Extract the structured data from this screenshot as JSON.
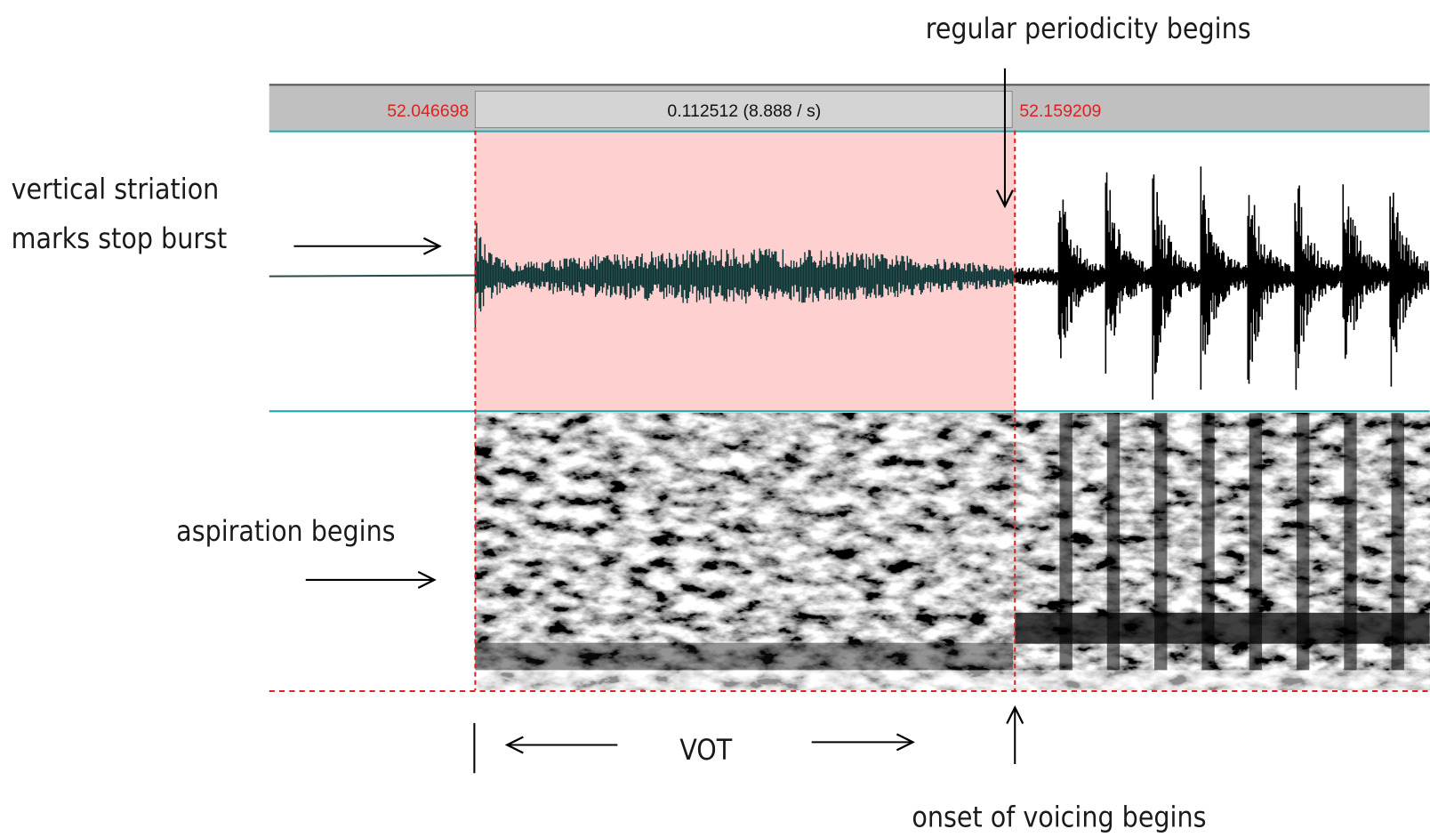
{
  "toolbar": {
    "start_time": "52.046698",
    "selection_duration": "0.112512 (8.888 / s)",
    "end_time": "52.159209"
  },
  "annotations": {
    "periodicity": "regular periodicity begins",
    "burst_line1": "vertical striation",
    "burst_line2": "marks stop burst",
    "aspiration": "aspiration begins",
    "vot": "VOT",
    "voicing": "onset of voicing begins"
  }
}
